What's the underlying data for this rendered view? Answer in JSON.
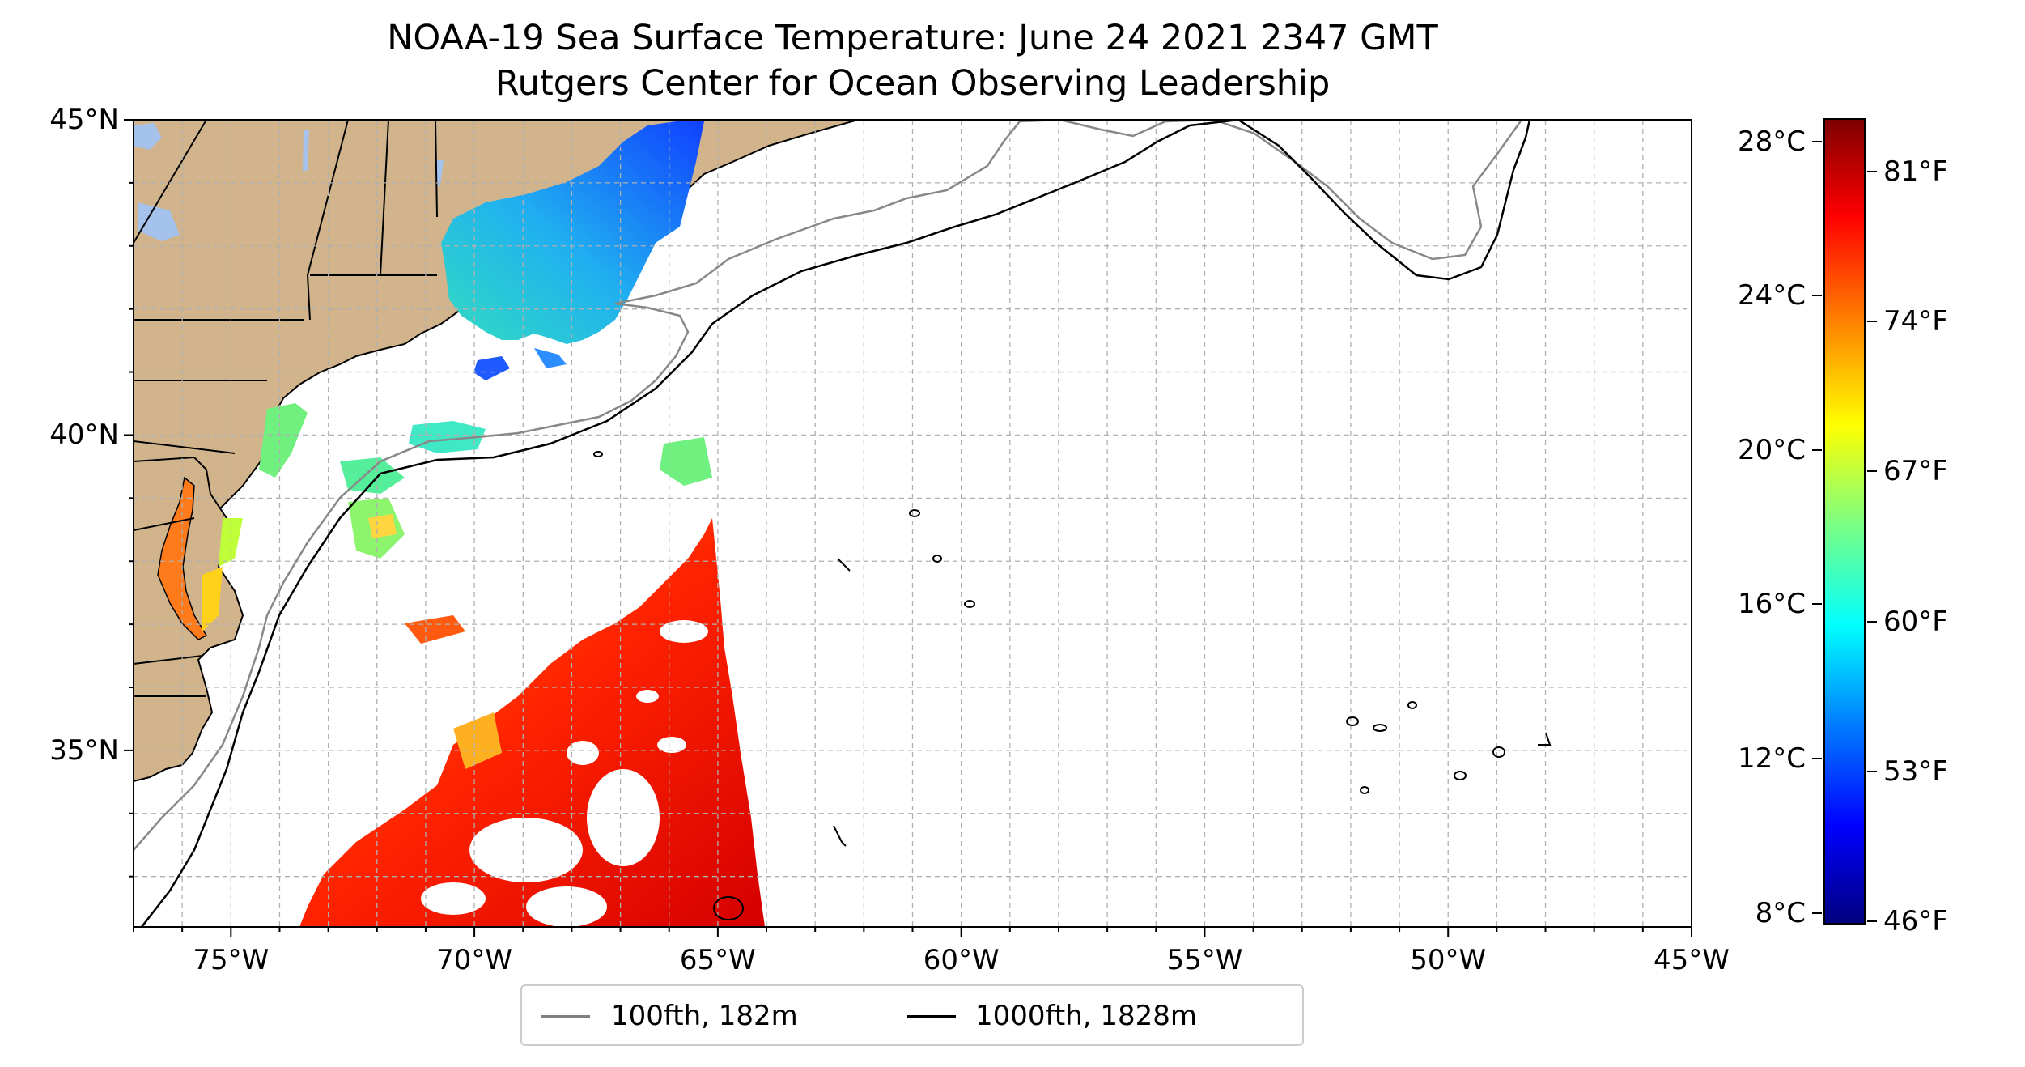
{
  "title": {
    "line1": "NOAA-19 Sea Surface Temperature: June 24 2021 2347 GMT",
    "line2": "Rutgers Center for Ocean Observing Leadership"
  },
  "map": {
    "lon_range": [
      -77,
      -45
    ],
    "lat_range": [
      32.2,
      45
    ],
    "x_ticks": [
      "75°W",
      "70°W",
      "65°W",
      "60°W",
      "55°W",
      "50°W",
      "45°W"
    ],
    "y_ticks": [
      "45°N",
      "40°N",
      "35°N"
    ],
    "grid": true,
    "colors": {
      "land": "#d2b48c",
      "lakes": "#a4c2ec",
      "isobath_100fth": "#888888",
      "isobath_1000fth": "#000000",
      "grid": "#b0b0b0"
    }
  },
  "legend": {
    "items": [
      {
        "label": "100fth, 182m",
        "color": "#808080"
      },
      {
        "label": "1000fth, 1828m",
        "color": "#000000"
      }
    ]
  },
  "colorbar": {
    "colormap": "jet",
    "celsius_range": [
      7.7,
      28.6
    ],
    "celsius_ticks": [
      "28°C",
      "24°C",
      "20°C",
      "16°C",
      "12°C",
      "8°C"
    ],
    "fahrenheit_ticks": [
      "81°F",
      "74°F",
      "67°F",
      "60°F",
      "53°F",
      "46°F"
    ]
  }
}
